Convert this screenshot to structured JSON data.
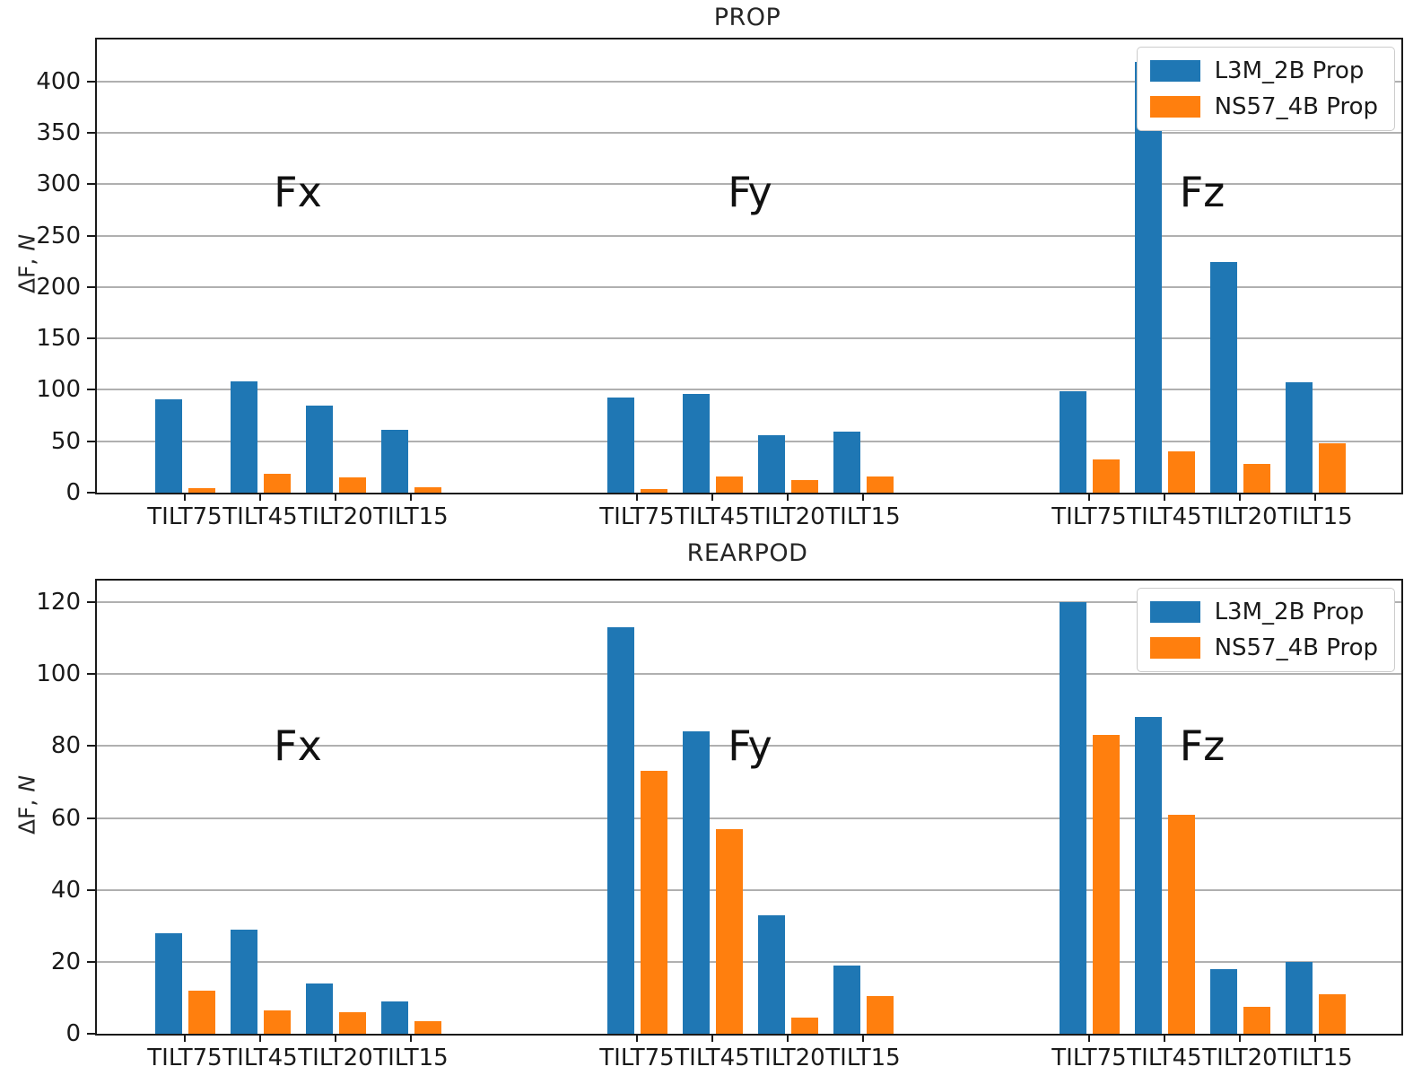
{
  "figure": {
    "background": "#ffffff",
    "series_colors": {
      "L3M_2B Prop": "#1f77b4",
      "NS57_4B Prop": "#ff7f0e"
    },
    "gridline_color": "#b0b0b0",
    "axis_color": "#1a1a1a"
  },
  "chart_data": [
    {
      "type": "bar",
      "title": "PROP",
      "ylabel": "ΔF, N",
      "ylabel_prefix": "ΔF, ",
      "ylabel_unit": "N",
      "ylim": [
        0,
        441
      ],
      "yticks": [
        0,
        50,
        100,
        150,
        200,
        250,
        300,
        350,
        400
      ],
      "grid": true,
      "legend_position": "upper right",
      "categories": [
        "TILT75",
        "TILT45",
        "TILT20",
        "TILT15"
      ],
      "legend": [
        {
          "label": "L3M_2B Prop",
          "color": "#1f77b4"
        },
        {
          "label": "NS57_4B Prop",
          "color": "#ff7f0e"
        }
      ],
      "groups": [
        {
          "label": "Fx",
          "series": [
            {
              "name": "L3M_2B Prop",
              "color": "#1f77b4",
              "values": [
                91,
                108,
                85,
                61
              ]
            },
            {
              "name": "NS57_4B Prop",
              "color": "#ff7f0e",
              "values": [
                4,
                18,
                15,
                5
              ]
            }
          ]
        },
        {
          "label": "Fy",
          "series": [
            {
              "name": "L3M_2B Prop",
              "color": "#1f77b4",
              "values": [
                93,
                96,
                56,
                59
              ]
            },
            {
              "name": "NS57_4B Prop",
              "color": "#ff7f0e",
              "values": [
                3.5,
                16,
                12,
                16
              ]
            }
          ]
        },
        {
          "label": "Fz",
          "series": [
            {
              "name": "L3M_2B Prop",
              "color": "#1f77b4",
              "values": [
                99,
                419,
                224,
                107
              ]
            },
            {
              "name": "NS57_4B Prop",
              "color": "#ff7f0e",
              "values": [
                32,
                40,
                28,
                48
              ]
            }
          ]
        }
      ]
    },
    {
      "type": "bar",
      "title": "REARPOD",
      "ylabel": "ΔF, N",
      "ylabel_prefix": "ΔF, ",
      "ylabel_unit": "N",
      "ylim": [
        0,
        126
      ],
      "yticks": [
        0,
        20,
        40,
        60,
        80,
        100,
        120
      ],
      "grid": true,
      "legend_position": "upper right",
      "categories": [
        "TILT75",
        "TILT45",
        "TILT20",
        "TILT15"
      ],
      "legend": [
        {
          "label": "L3M_2B Prop",
          "color": "#1f77b4"
        },
        {
          "label": "NS57_4B Prop",
          "color": "#ff7f0e"
        }
      ],
      "groups": [
        {
          "label": "Fx",
          "series": [
            {
              "name": "L3M_2B Prop",
              "color": "#1f77b4",
              "values": [
                28,
                29,
                14,
                9
              ]
            },
            {
              "name": "NS57_4B Prop",
              "color": "#ff7f0e",
              "values": [
                12,
                6.5,
                6,
                3.5
              ]
            }
          ]
        },
        {
          "label": "Fy",
          "series": [
            {
              "name": "L3M_2B Prop",
              "color": "#1f77b4",
              "values": [
                113,
                84,
                33,
                19
              ]
            },
            {
              "name": "NS57_4B Prop",
              "color": "#ff7f0e",
              "values": [
                73,
                57,
                4.5,
                10.5
              ]
            }
          ]
        },
        {
          "label": "Fz",
          "series": [
            {
              "name": "L3M_2B Prop",
              "color": "#1f77b4",
              "values": [
                120,
                88,
                18,
                20
              ]
            },
            {
              "name": "NS57_4B Prop",
              "color": "#ff7f0e",
              "values": [
                83,
                61,
                7.5,
                11
              ]
            }
          ]
        }
      ]
    }
  ]
}
